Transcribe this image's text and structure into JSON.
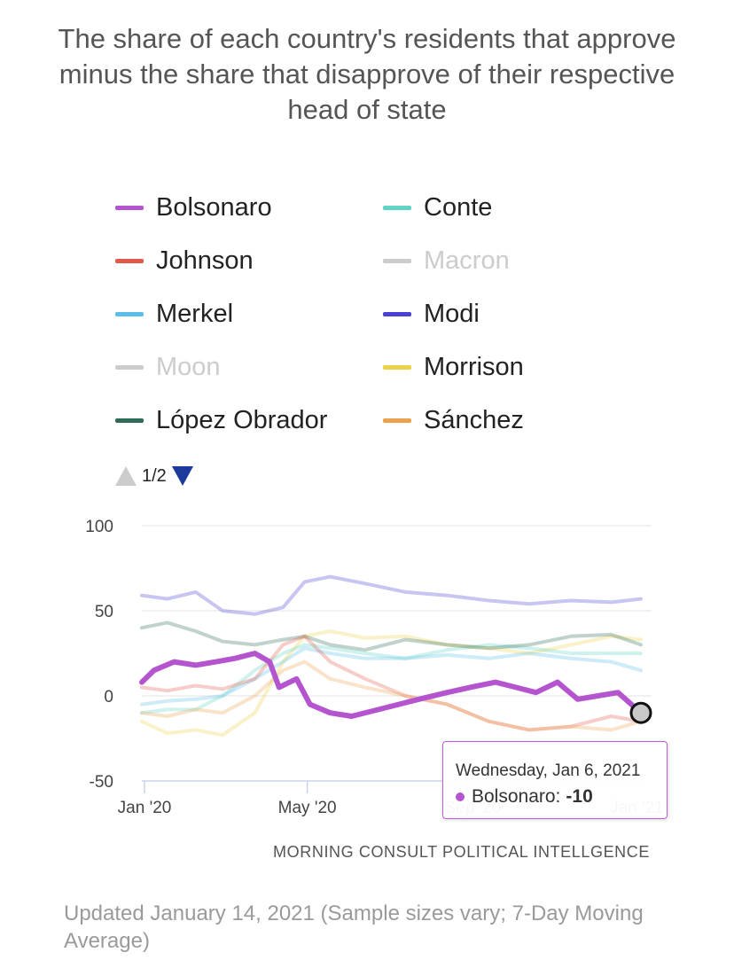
{
  "title": "The share of each country's residents that approve minus the share that disapprove of their respective head of state",
  "legend": [
    {
      "label": "Bolsonaro",
      "color": "#b455cf",
      "hidden": false
    },
    {
      "label": "Conte",
      "color": "#5fd3c8",
      "hidden": false
    },
    {
      "label": "Johnson",
      "color": "#e05a4a",
      "hidden": false
    },
    {
      "label": "Macron",
      "color": "#cccccc",
      "hidden": true
    },
    {
      "label": "Merkel",
      "color": "#5bbde8",
      "hidden": false
    },
    {
      "label": "Modi",
      "color": "#4a3fd6",
      "hidden": false
    },
    {
      "label": "Moon",
      "color": "#cccccc",
      "hidden": true
    },
    {
      "label": "Morrison",
      "color": "#ecd14a",
      "hidden": false
    },
    {
      "label": "López Obrador",
      "color": "#2f6b55",
      "hidden": false
    },
    {
      "label": "Sánchez",
      "color": "#eba24f",
      "hidden": false
    }
  ],
  "pager": {
    "text": "1/2"
  },
  "tooltip": {
    "date": "Wednesday, Jan 6, 2021",
    "series": "Bolsonaro:",
    "value": "-10"
  },
  "credit": "MORNING CONSULT POLITICAL INTELLGENCE",
  "note": "Updated January 14, 2021 (Sample sizes vary; 7-Day Moving Average)",
  "chart_data": {
    "type": "line",
    "y_ticks": [
      100,
      50,
      0,
      -50
    ],
    "ylim": [
      -50,
      100
    ],
    "x_ticks": [
      {
        "label": "Jan '20",
        "date": "2020-01-01"
      },
      {
        "label": "May '20",
        "date": "2020-05-01"
      },
      {
        "label": "Sep '20",
        "date": "2020-09-01"
      },
      {
        "label": "Jan '21",
        "date": "2021-01-01"
      }
    ],
    "xlim": [
      "2020-01-01",
      "2021-01-06"
    ],
    "highlighted_series": "Bolsonaro",
    "series": [
      {
        "name": "Modi",
        "color": "#4a3fd6",
        "x": [
          "2020-01-01",
          "2020-01-20",
          "2020-02-10",
          "2020-03-01",
          "2020-03-25",
          "2020-04-15",
          "2020-05-01",
          "2020-05-20",
          "2020-06-15",
          "2020-07-15",
          "2020-08-15",
          "2020-09-15",
          "2020-10-15",
          "2020-11-15",
          "2020-12-15",
          "2021-01-06"
        ],
        "values": [
          59,
          57,
          61,
          50,
          48,
          52,
          67,
          70,
          66,
          61,
          59,
          56,
          54,
          56,
          55,
          57
        ]
      },
      {
        "name": "Morrison",
        "color": "#ecd14a",
        "x": [
          "2020-01-01",
          "2020-01-20",
          "2020-02-10",
          "2020-03-01",
          "2020-03-25",
          "2020-04-15",
          "2020-05-01",
          "2020-05-20",
          "2020-06-15",
          "2020-07-15",
          "2020-08-15",
          "2020-09-15",
          "2020-10-15",
          "2020-11-15",
          "2020-12-15",
          "2021-01-06"
        ],
        "values": [
          -15,
          -22,
          -20,
          -23,
          -10,
          20,
          35,
          38,
          34,
          35,
          30,
          28,
          25,
          30,
          35,
          33
        ]
      },
      {
        "name": "Merkel",
        "color": "#5bbde8",
        "x": [
          "2020-01-01",
          "2020-01-20",
          "2020-02-10",
          "2020-03-01",
          "2020-03-25",
          "2020-04-15",
          "2020-05-01",
          "2020-05-20",
          "2020-06-15",
          "2020-07-15",
          "2020-08-15",
          "2020-09-15",
          "2020-10-15",
          "2020-11-15",
          "2020-12-15",
          "2021-01-06"
        ],
        "values": [
          -5,
          -3,
          -2,
          0,
          10,
          20,
          28,
          25,
          22,
          22,
          24,
          22,
          25,
          22,
          20,
          15
        ]
      },
      {
        "name": "Conte",
        "color": "#5fd3c8",
        "x": [
          "2020-01-01",
          "2020-01-20",
          "2020-02-10",
          "2020-03-01",
          "2020-03-25",
          "2020-04-15",
          "2020-05-01",
          "2020-05-20",
          "2020-06-15",
          "2020-07-15",
          "2020-08-15",
          "2020-09-15",
          "2020-10-15",
          "2020-11-15",
          "2020-12-15",
          "2021-01-06"
        ],
        "values": [
          -10,
          -8,
          -8,
          0,
          15,
          25,
          30,
          28,
          25,
          22,
          27,
          30,
          28,
          25,
          25,
          25
        ]
      },
      {
        "name": "López Obrador",
        "color": "#2f6b55",
        "x": [
          "2020-01-01",
          "2020-01-20",
          "2020-02-10",
          "2020-03-01",
          "2020-03-25",
          "2020-04-15",
          "2020-05-01",
          "2020-05-20",
          "2020-06-15",
          "2020-07-15",
          "2020-08-15",
          "2020-09-15",
          "2020-10-15",
          "2020-11-15",
          "2020-12-15",
          "2021-01-06"
        ],
        "values": [
          40,
          43,
          38,
          32,
          30,
          33,
          35,
          30,
          27,
          33,
          30,
          28,
          30,
          35,
          36,
          30
        ]
      },
      {
        "name": "Johnson",
        "color": "#e05a4a",
        "x": [
          "2020-01-01",
          "2020-01-20",
          "2020-02-10",
          "2020-03-01",
          "2020-03-25",
          "2020-04-15",
          "2020-05-01",
          "2020-05-20",
          "2020-06-15",
          "2020-07-15",
          "2020-08-15",
          "2020-09-15",
          "2020-10-15",
          "2020-11-15",
          "2020-12-15",
          "2021-01-06"
        ],
        "values": [
          5,
          3,
          6,
          4,
          10,
          30,
          35,
          20,
          10,
          0,
          -5,
          -15,
          -20,
          -18,
          -12,
          -15
        ]
      },
      {
        "name": "Sánchez",
        "color": "#eba24f",
        "x": [
          "2020-01-01",
          "2020-01-20",
          "2020-02-10",
          "2020-03-01",
          "2020-03-25",
          "2020-04-15",
          "2020-05-01",
          "2020-05-20",
          "2020-06-15",
          "2020-07-15",
          "2020-08-15",
          "2020-09-15",
          "2020-10-15",
          "2020-11-15",
          "2020-12-15",
          "2021-01-06"
        ],
        "values": [
          -10,
          -12,
          -8,
          -10,
          0,
          15,
          20,
          10,
          5,
          0,
          -5,
          -15,
          -20,
          -18,
          -20,
          -15
        ]
      },
      {
        "name": "Bolsonaro",
        "color": "#b455cf",
        "x": [
          "2020-01-01",
          "2020-01-10",
          "2020-01-25",
          "2020-02-10",
          "2020-02-25",
          "2020-03-10",
          "2020-03-25",
          "2020-04-05",
          "2020-04-12",
          "2020-04-25",
          "2020-05-05",
          "2020-05-20",
          "2020-06-05",
          "2020-06-25",
          "2020-07-10",
          "2020-07-25",
          "2020-08-15",
          "2020-09-01",
          "2020-09-20",
          "2020-10-05",
          "2020-10-20",
          "2020-11-05",
          "2020-11-20",
          "2020-12-05",
          "2020-12-20",
          "2021-01-06"
        ],
        "values": [
          8,
          15,
          20,
          18,
          20,
          22,
          25,
          20,
          5,
          10,
          -5,
          -10,
          -12,
          -8,
          -5,
          -2,
          2,
          5,
          8,
          5,
          2,
          8,
          -2,
          0,
          2,
          -10
        ]
      }
    ]
  }
}
